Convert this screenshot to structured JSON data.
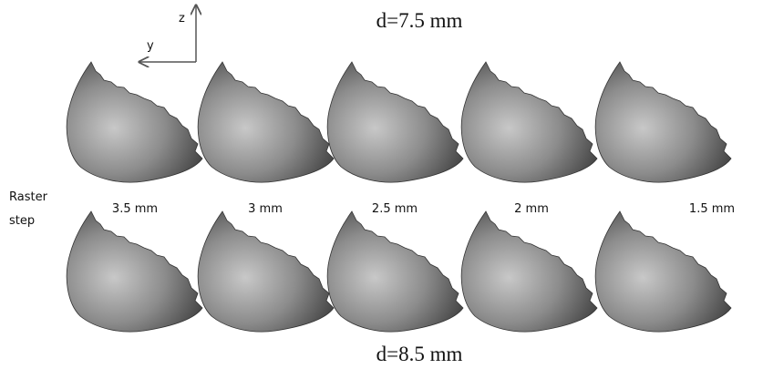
{
  "figure": {
    "title_top": "d=7.5 mm",
    "title_bottom": "d=8.5 mm",
    "axis_z": "z",
    "axis_y": "y",
    "row_label": [
      "Raster",
      "step"
    ],
    "steps": [
      "3.5 mm",
      "3 mm",
      "2.5 mm",
      "2 mm",
      "1.5 mm"
    ]
  }
}
